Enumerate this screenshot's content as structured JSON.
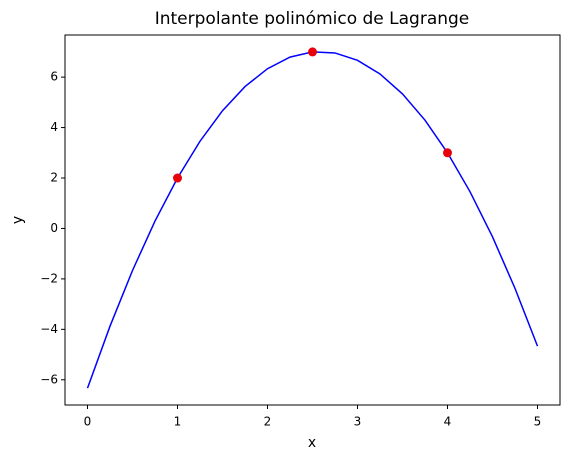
{
  "chart_data": {
    "type": "line",
    "title": "Interpolante polinómico de Lagrange",
    "x_label": "x",
    "y_label": "y",
    "xlim": [
      -0.25,
      5.25
    ],
    "ylim": [
      -7,
      7.67
    ],
    "xticks": [
      0,
      1,
      2,
      3,
      4,
      5
    ],
    "yticks": [
      {
        "value": -6,
        "label": "−6"
      },
      {
        "value": -4,
        "label": "−4"
      },
      {
        "value": -2,
        "label": "−2"
      },
      0,
      2,
      4,
      6
    ],
    "grid": false,
    "series": [
      {
        "type": "line",
        "color": "#0000ff",
        "x": [
          0,
          0.25,
          0.5,
          0.75,
          1,
          1.25,
          1.5,
          1.75,
          2,
          2.25,
          2.5,
          2.75,
          3,
          3.25,
          3.5,
          3.75,
          4,
          4.25,
          4.5,
          4.75,
          5
        ],
        "values": [
          -6.333,
          -3.875,
          -1.667,
          0.292,
          2,
          3.458,
          4.667,
          5.625,
          6.333,
          6.792,
          7,
          6.958,
          6.667,
          6.125,
          5.333,
          4.292,
          3,
          1.458,
          -0.333,
          -2.375,
          -4.667
        ]
      },
      {
        "type": "scatter",
        "color": "#e8000b",
        "x": [
          1,
          2.5,
          4
        ],
        "values": [
          2,
          7,
          3
        ]
      }
    ]
  }
}
